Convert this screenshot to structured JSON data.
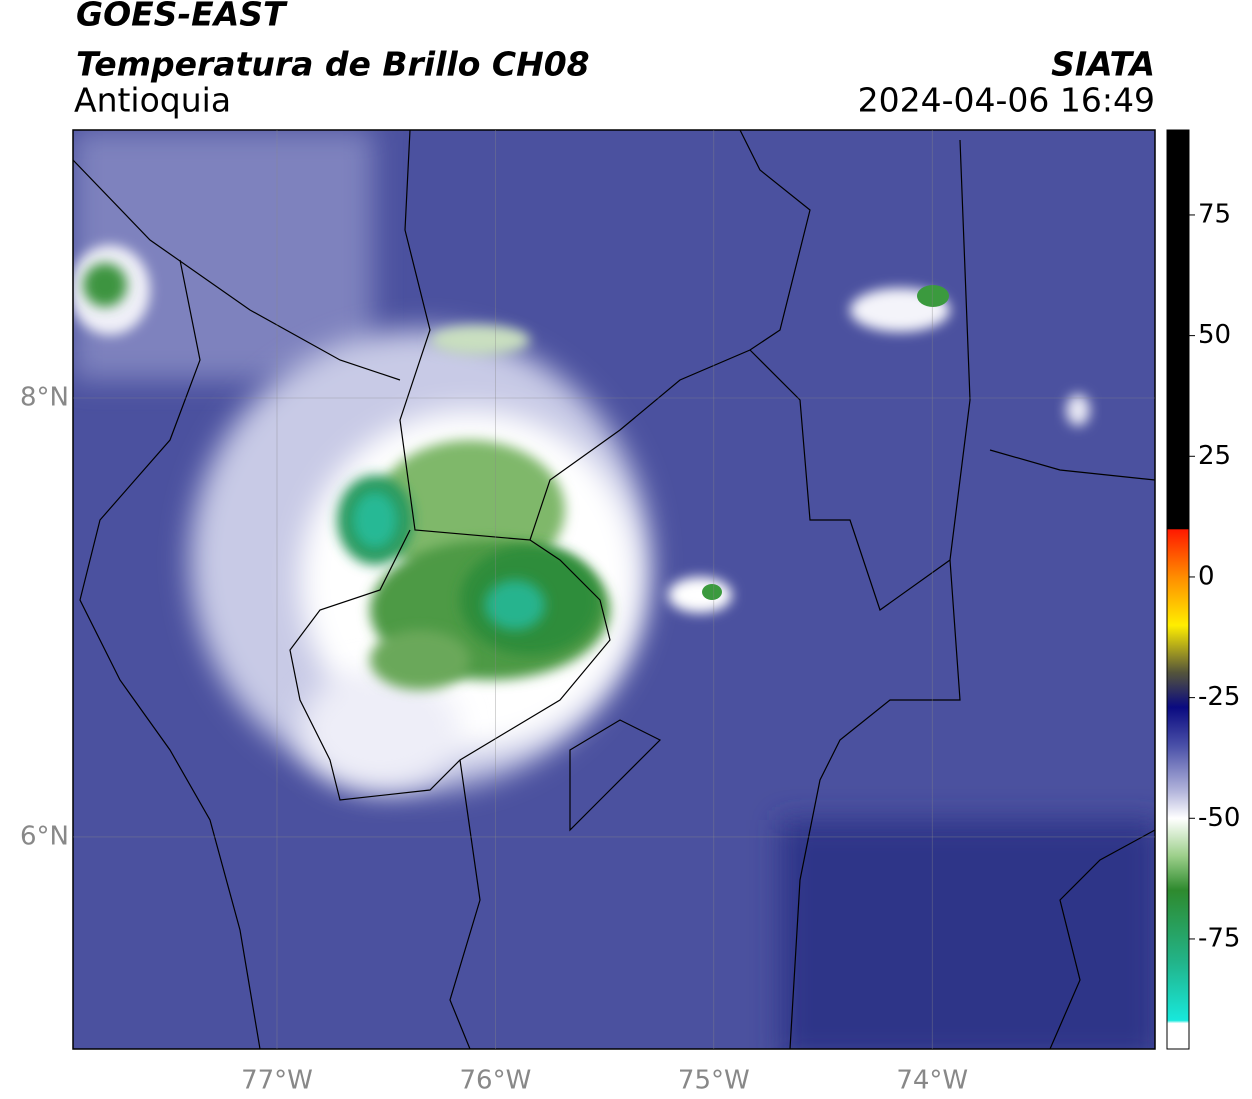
{
  "header": {
    "title": "GOES-EAST",
    "subtitle": "Temperatura de Brillo CH08",
    "region": "Antioquia",
    "source": "SIATA",
    "datetime": "2024-04-06 16:49"
  },
  "map": {
    "xlim": [
      -77.934,
      -72.98
    ],
    "ylim": [
      5.034,
      9.221
    ],
    "xticks": [
      {
        "value": -77,
        "label": "77°W"
      },
      {
        "value": -76,
        "label": "76°W"
      },
      {
        "value": -75,
        "label": "75°W"
      },
      {
        "value": -74,
        "label": "74°W"
      }
    ],
    "yticks": [
      {
        "value": 6,
        "label": "6°N"
      },
      {
        "value": 8,
        "label": "8°N"
      }
    ],
    "grid": true
  },
  "colorbar": {
    "lim": [
      -97.8,
      92.6
    ],
    "ticks": [
      75,
      50,
      25,
      0,
      -25,
      -50,
      -75
    ]
  }
}
